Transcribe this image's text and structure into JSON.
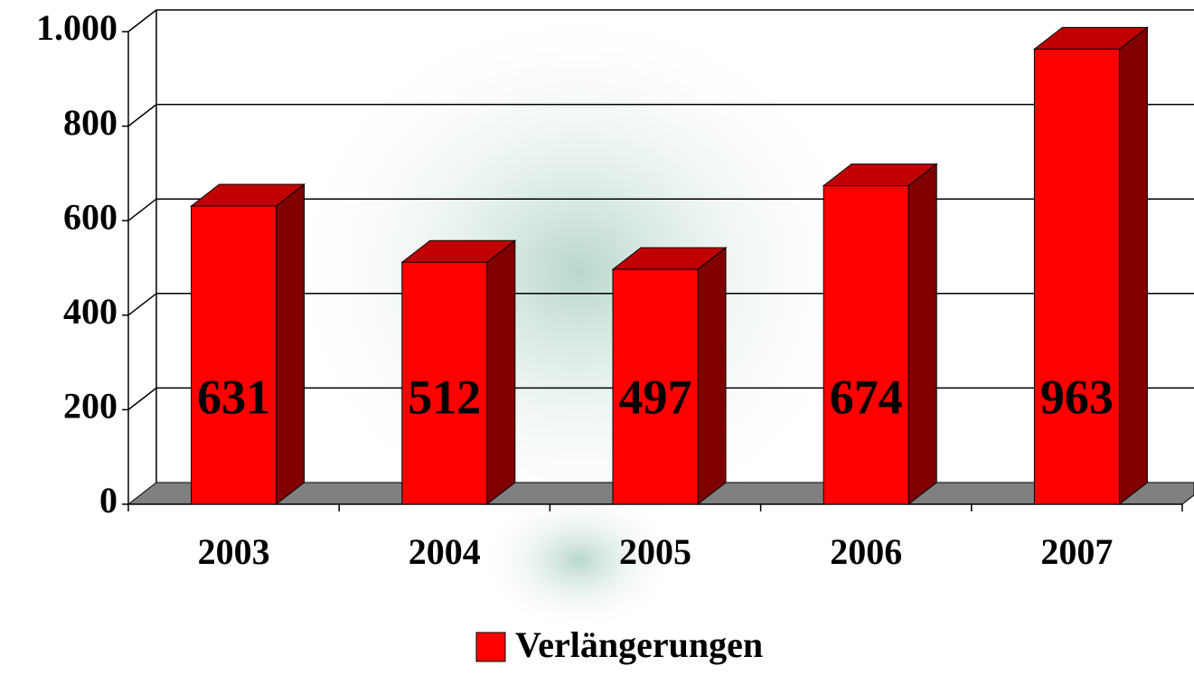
{
  "chart_data": {
    "type": "bar3d",
    "categories": [
      "2003",
      "2004",
      "2005",
      "2006",
      "2007"
    ],
    "series": [
      {
        "name": "Verlängerungen",
        "color": "#ff0000",
        "values": [
          631,
          512,
          497,
          674,
          963
        ]
      }
    ],
    "ylim": [
      0,
      1000
    ],
    "yticks": [
      0,
      200,
      400,
      600,
      800,
      {
        "value": 1000,
        "label": "1.000"
      }
    ],
    "grid": true
  }
}
